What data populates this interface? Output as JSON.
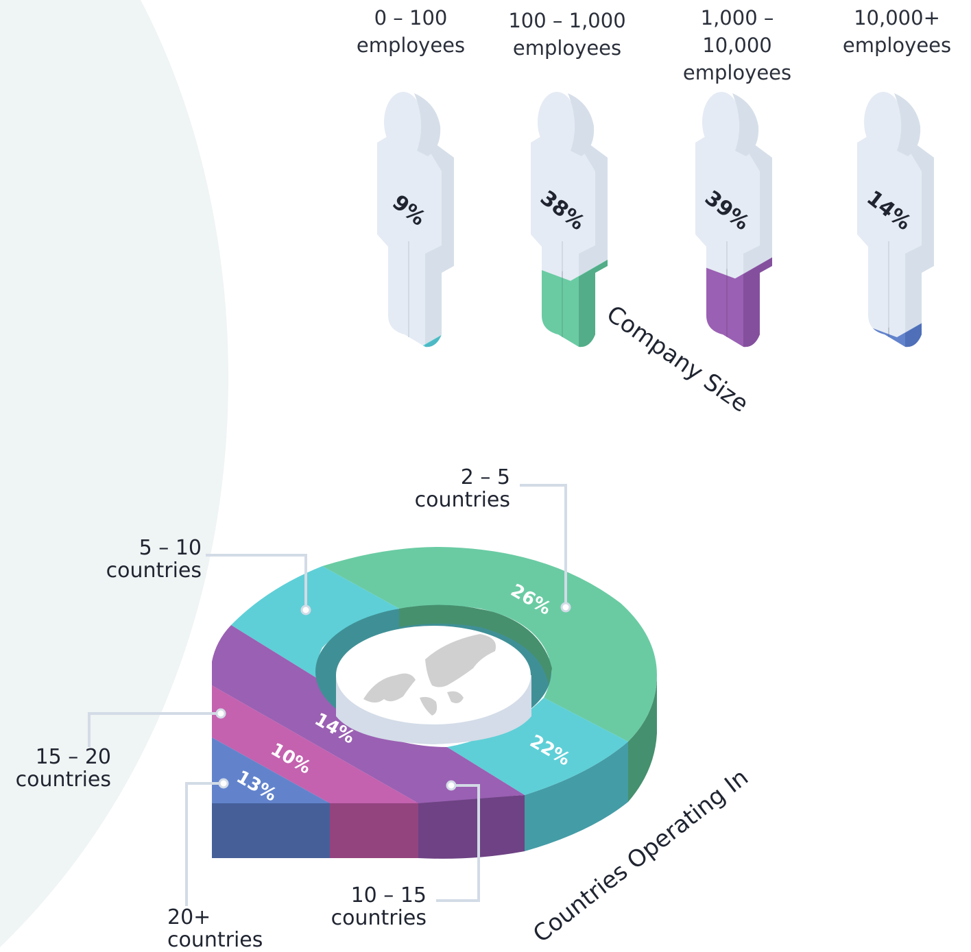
{
  "chart_data": [
    {
      "type": "bar",
      "title": "Company Size",
      "categories": [
        "0 – 100 employees",
        "100 – 1,000 employees",
        "1,000 – 10,000 employees",
        "10,000+ employees"
      ],
      "values": [
        9,
        38,
        39,
        14
      ],
      "value_labels": [
        "9%",
        "38%",
        "39%",
        "14%"
      ],
      "unit": "%",
      "colors": [
        "#5ecfd7",
        "#6acba3",
        "#9a60b3",
        "#6283cc"
      ],
      "icon": "person-icon"
    },
    {
      "type": "pie",
      "title": "Countries Operating In",
      "categories": [
        "2 – 5 countries",
        "5 – 10 countries",
        "10 – 15 countries",
        "15 – 20 countries",
        "20+ countries"
      ],
      "values": [
        26,
        22,
        14,
        10,
        13
      ],
      "value_labels": [
        "26%",
        "22%",
        "14%",
        "10%",
        "13%"
      ],
      "unit": "%",
      "colors": [
        "#6acba3",
        "#5ecfd7",
        "#9a60b3",
        "#c462af",
        "#6283cc"
      ],
      "center_icon": "world-map-icon"
    }
  ],
  "company_size": {
    "title": "Company Size",
    "groups": [
      {
        "range": "0 – 100",
        "unit": "employees",
        "pct": "9%",
        "fill": 0.09,
        "color": "#5ecfd7",
        "side": "#4db9c4"
      },
      {
        "range": "100 – 1,000",
        "unit": "employees",
        "pct": "38%",
        "fill": 0.38,
        "color": "#6acba3",
        "side": "#52ad88"
      },
      {
        "range": "1,000 – 10,000",
        "unit": "employees",
        "pct": "39%",
        "fill": 0.39,
        "color": "#9a60b3",
        "side": "#84509d"
      },
      {
        "range": "10,000+",
        "unit": "employees",
        "pct": "14%",
        "fill": 0.14,
        "color": "#6283cc",
        "side": "#4f6fb8"
      }
    ]
  },
  "countries": {
    "title": "Countries Operating In",
    "callouts": [
      {
        "line1": "2 – 5",
        "line2": "countries"
      },
      {
        "line1": "5 – 10",
        "line2": "countries"
      },
      {
        "line1": "15 – 20",
        "line2": "countries"
      },
      {
        "line1": "20+",
        "line2": "countries"
      },
      {
        "line1": "10 – 15",
        "line2": "countries"
      }
    ],
    "slices": [
      {
        "pct": "26%",
        "color": "#6acba3",
        "side": "#45906e"
      },
      {
        "pct": "22%",
        "color": "#5ecfd7",
        "side": "#449ca6"
      },
      {
        "pct": "14%",
        "color": "#9a60b3",
        "side": "#6e4284"
      },
      {
        "pct": "10%",
        "color": "#c462af",
        "side": "#93447f"
      },
      {
        "pct": "13%",
        "color": "#6283cc",
        "side": "#465f99"
      }
    ]
  }
}
